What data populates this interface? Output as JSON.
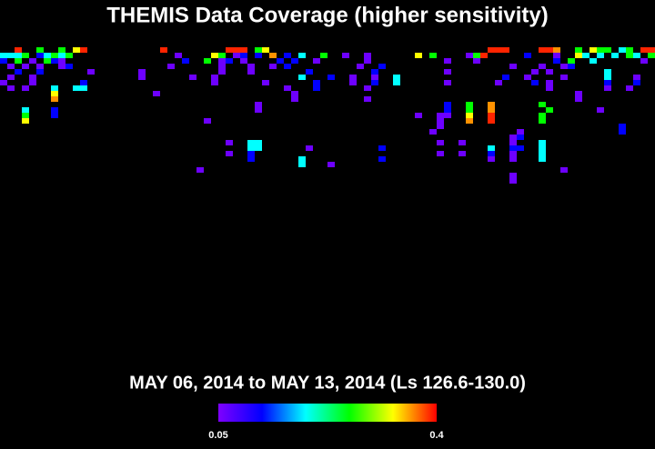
{
  "chart_data": {
    "type": "heatmap",
    "title": "THEMIS Data Coverage (higher sensitivity)",
    "subtitle": "MAY 06, 2014 to MAY 13, 2014 (Ls 126.6-130.0)",
    "xlim": [
      0,
      90
    ],
    "ylim": [
      0,
      58
    ],
    "clim": [
      0.05,
      0.4
    ],
    "cticks": [
      0.05,
      0.4
    ],
    "colormap": [
      "#7f00ff",
      "#0000ff",
      "#00ffff",
      "#00ff00",
      "#ffff00",
      "#ff0000"
    ],
    "rows": [
      {
        "y": 0,
        "x": [
          2,
          5,
          8,
          10,
          11,
          22,
          31,
          32,
          33,
          35,
          36,
          67,
          68,
          69,
          74,
          75,
          76,
          79,
          81,
          82,
          83,
          85,
          86,
          88,
          89
        ],
        "values": [
          0.39,
          0.26,
          0.26,
          0.33,
          0.39,
          0.39,
          0.39,
          0.39,
          0.39,
          0.26,
          0.33,
          0.39,
          0.39,
          0.39,
          0.39,
          0.39,
          0.36,
          0.26,
          0.33,
          0.26,
          0.26,
          0.19,
          0.26,
          0.39,
          0.39
        ]
      },
      {
        "y": 1,
        "x": [
          0,
          1,
          2,
          3,
          5,
          6,
          7,
          8,
          9,
          24,
          29,
          30,
          32,
          33,
          35,
          37,
          39,
          41,
          44,
          47,
          50,
          57,
          59,
          64,
          65,
          66,
          72,
          76,
          79,
          80,
          82,
          84,
          86,
          87,
          89
        ],
        "values": [
          0.19,
          0.19,
          0.19,
          0.26,
          0.12,
          0.19,
          0.26,
          0.19,
          0.26,
          0.06,
          0.33,
          0.26,
          0.06,
          0.12,
          0.12,
          0.36,
          0.12,
          0.19,
          0.26,
          0.06,
          0.06,
          0.33,
          0.26,
          0.06,
          0.26,
          0.39,
          0.12,
          0.06,
          0.33,
          0.19,
          0.19,
          0.19,
          0.26,
          0.19,
          0.26
        ]
      },
      {
        "y": 2,
        "x": [
          0,
          2,
          4,
          6,
          7,
          8,
          25,
          28,
          30,
          31,
          33,
          38,
          40,
          43,
          50,
          61,
          65,
          76,
          78,
          81,
          88
        ],
        "values": [
          0.12,
          0.26,
          0.06,
          0.26,
          0.12,
          0.06,
          0.12,
          0.26,
          0.06,
          0.12,
          0.06,
          0.12,
          0.12,
          0.06,
          0.06,
          0.06,
          0.06,
          0.12,
          0.26,
          0.19,
          0.06
        ]
      },
      {
        "y": 3,
        "x": [
          1,
          3,
          5,
          8,
          9,
          23,
          30,
          34,
          37,
          39,
          49,
          52,
          70,
          74,
          77,
          78
        ],
        "values": [
          0.06,
          0.06,
          0.06,
          0.06,
          0.12,
          0.06,
          0.06,
          0.06,
          0.06,
          0.12,
          0.06,
          0.12,
          0.06,
          0.06,
          0.06,
          0.12
        ]
      },
      {
        "y": 4,
        "x": [
          2,
          5,
          12,
          19,
          30,
          34,
          42,
          51,
          61,
          73,
          75,
          83
        ],
        "values": [
          0.12,
          0.12,
          0.06,
          0.06,
          0.06,
          0.06,
          0.12,
          0.12,
          0.06,
          0.06,
          0.06,
          0.19
        ]
      },
      {
        "y": 5,
        "x": [
          1,
          4,
          19,
          26,
          29,
          41,
          45,
          48,
          51,
          54,
          69,
          72,
          77,
          83,
          87
        ],
        "values": [
          0.06,
          0.06,
          0.06,
          0.06,
          0.06,
          0.19,
          0.12,
          0.06,
          0.06,
          0.19,
          0.12,
          0.06,
          0.06,
          0.19,
          0.06
        ]
      },
      {
        "y": 6,
        "x": [
          0,
          4,
          11,
          29,
          36,
          43,
          48,
          51,
          54,
          61,
          68,
          73,
          75,
          83,
          87
        ],
        "values": [
          0.06,
          0.06,
          0.12,
          0.06,
          0.06,
          0.12,
          0.06,
          0.12,
          0.19,
          0.06,
          0.06,
          0.12,
          0.06,
          0.12,
          0.12
        ]
      },
      {
        "y": 7,
        "x": [
          1,
          3,
          7,
          10,
          11,
          39,
          43,
          50,
          75,
          83,
          86
        ],
        "values": [
          0.06,
          0.06,
          0.19,
          0.19,
          0.19,
          0.06,
          0.12,
          0.06,
          0.06,
          0.06,
          0.06
        ]
      },
      {
        "y": 8,
        "x": [
          7,
          21,
          40,
          79
        ],
        "values": [
          0.33,
          0.06,
          0.06,
          0.06
        ]
      },
      {
        "y": 9,
        "x": [
          7,
          40,
          50,
          79
        ],
        "values": [
          0.36,
          0.06,
          0.06,
          0.06
        ]
      },
      {
        "y": 10,
        "x": [
          35,
          61,
          64,
          67,
          74
        ],
        "values": [
          0.06,
          0.12,
          0.26,
          0.36,
          0.26
        ]
      },
      {
        "y": 11,
        "x": [
          3,
          7,
          35,
          61,
          64,
          67,
          75,
          82
        ],
        "values": [
          0.19,
          0.12,
          0.06,
          0.12,
          0.26,
          0.36,
          0.26,
          0.06
        ]
      },
      {
        "y": 12,
        "x": [
          3,
          7,
          57,
          60,
          61,
          64,
          67,
          74
        ],
        "values": [
          0.26,
          0.12,
          0.06,
          0.06,
          0.06,
          0.33,
          0.39,
          0.26
        ]
      },
      {
        "y": 13,
        "x": [
          3,
          28,
          60,
          64,
          67,
          74
        ],
        "values": [
          0.33,
          0.06,
          0.06,
          0.36,
          0.39,
          0.26
        ]
      },
      {
        "y": 14,
        "x": [
          60,
          85
        ],
        "values": [
          0.06,
          0.12
        ]
      },
      {
        "y": 15,
        "x": [
          59,
          71,
          85
        ],
        "values": [
          0.06,
          0.06,
          0.12
        ]
      },
      {
        "y": 16,
        "x": [
          70,
          71
        ],
        "values": [
          0.06,
          0.12
        ]
      },
      {
        "y": 17,
        "x": [
          31,
          34,
          35,
          60,
          63,
          70,
          74
        ],
        "values": [
          0.06,
          0.19,
          0.19,
          0.06,
          0.06,
          0.06,
          0.19
        ]
      },
      {
        "y": 18,
        "x": [
          34,
          35,
          42,
          52,
          67,
          70,
          71,
          74
        ],
        "values": [
          0.19,
          0.19,
          0.06,
          0.12,
          0.19,
          0.12,
          0.12,
          0.19
        ]
      },
      {
        "y": 19,
        "x": [
          31,
          34,
          60,
          63,
          67,
          70,
          74
        ],
        "values": [
          0.06,
          0.12,
          0.06,
          0.06,
          0.12,
          0.06,
          0.19
        ]
      },
      {
        "y": 20,
        "x": [
          34,
          41,
          52,
          67,
          70,
          74
        ],
        "values": [
          0.12,
          0.19,
          0.12,
          0.06,
          0.06,
          0.19
        ]
      },
      {
        "y": 21,
        "x": [
          41,
          45
        ],
        "values": [
          0.19,
          0.06
        ]
      },
      {
        "y": 22,
        "x": [
          27,
          77
        ],
        "values": [
          0.06,
          0.06
        ]
      },
      {
        "y": 23,
        "x": [
          70
        ],
        "values": [
          0.06
        ]
      },
      {
        "y": 24,
        "x": [
          70
        ],
        "values": [
          0.06
        ]
      }
    ]
  }
}
